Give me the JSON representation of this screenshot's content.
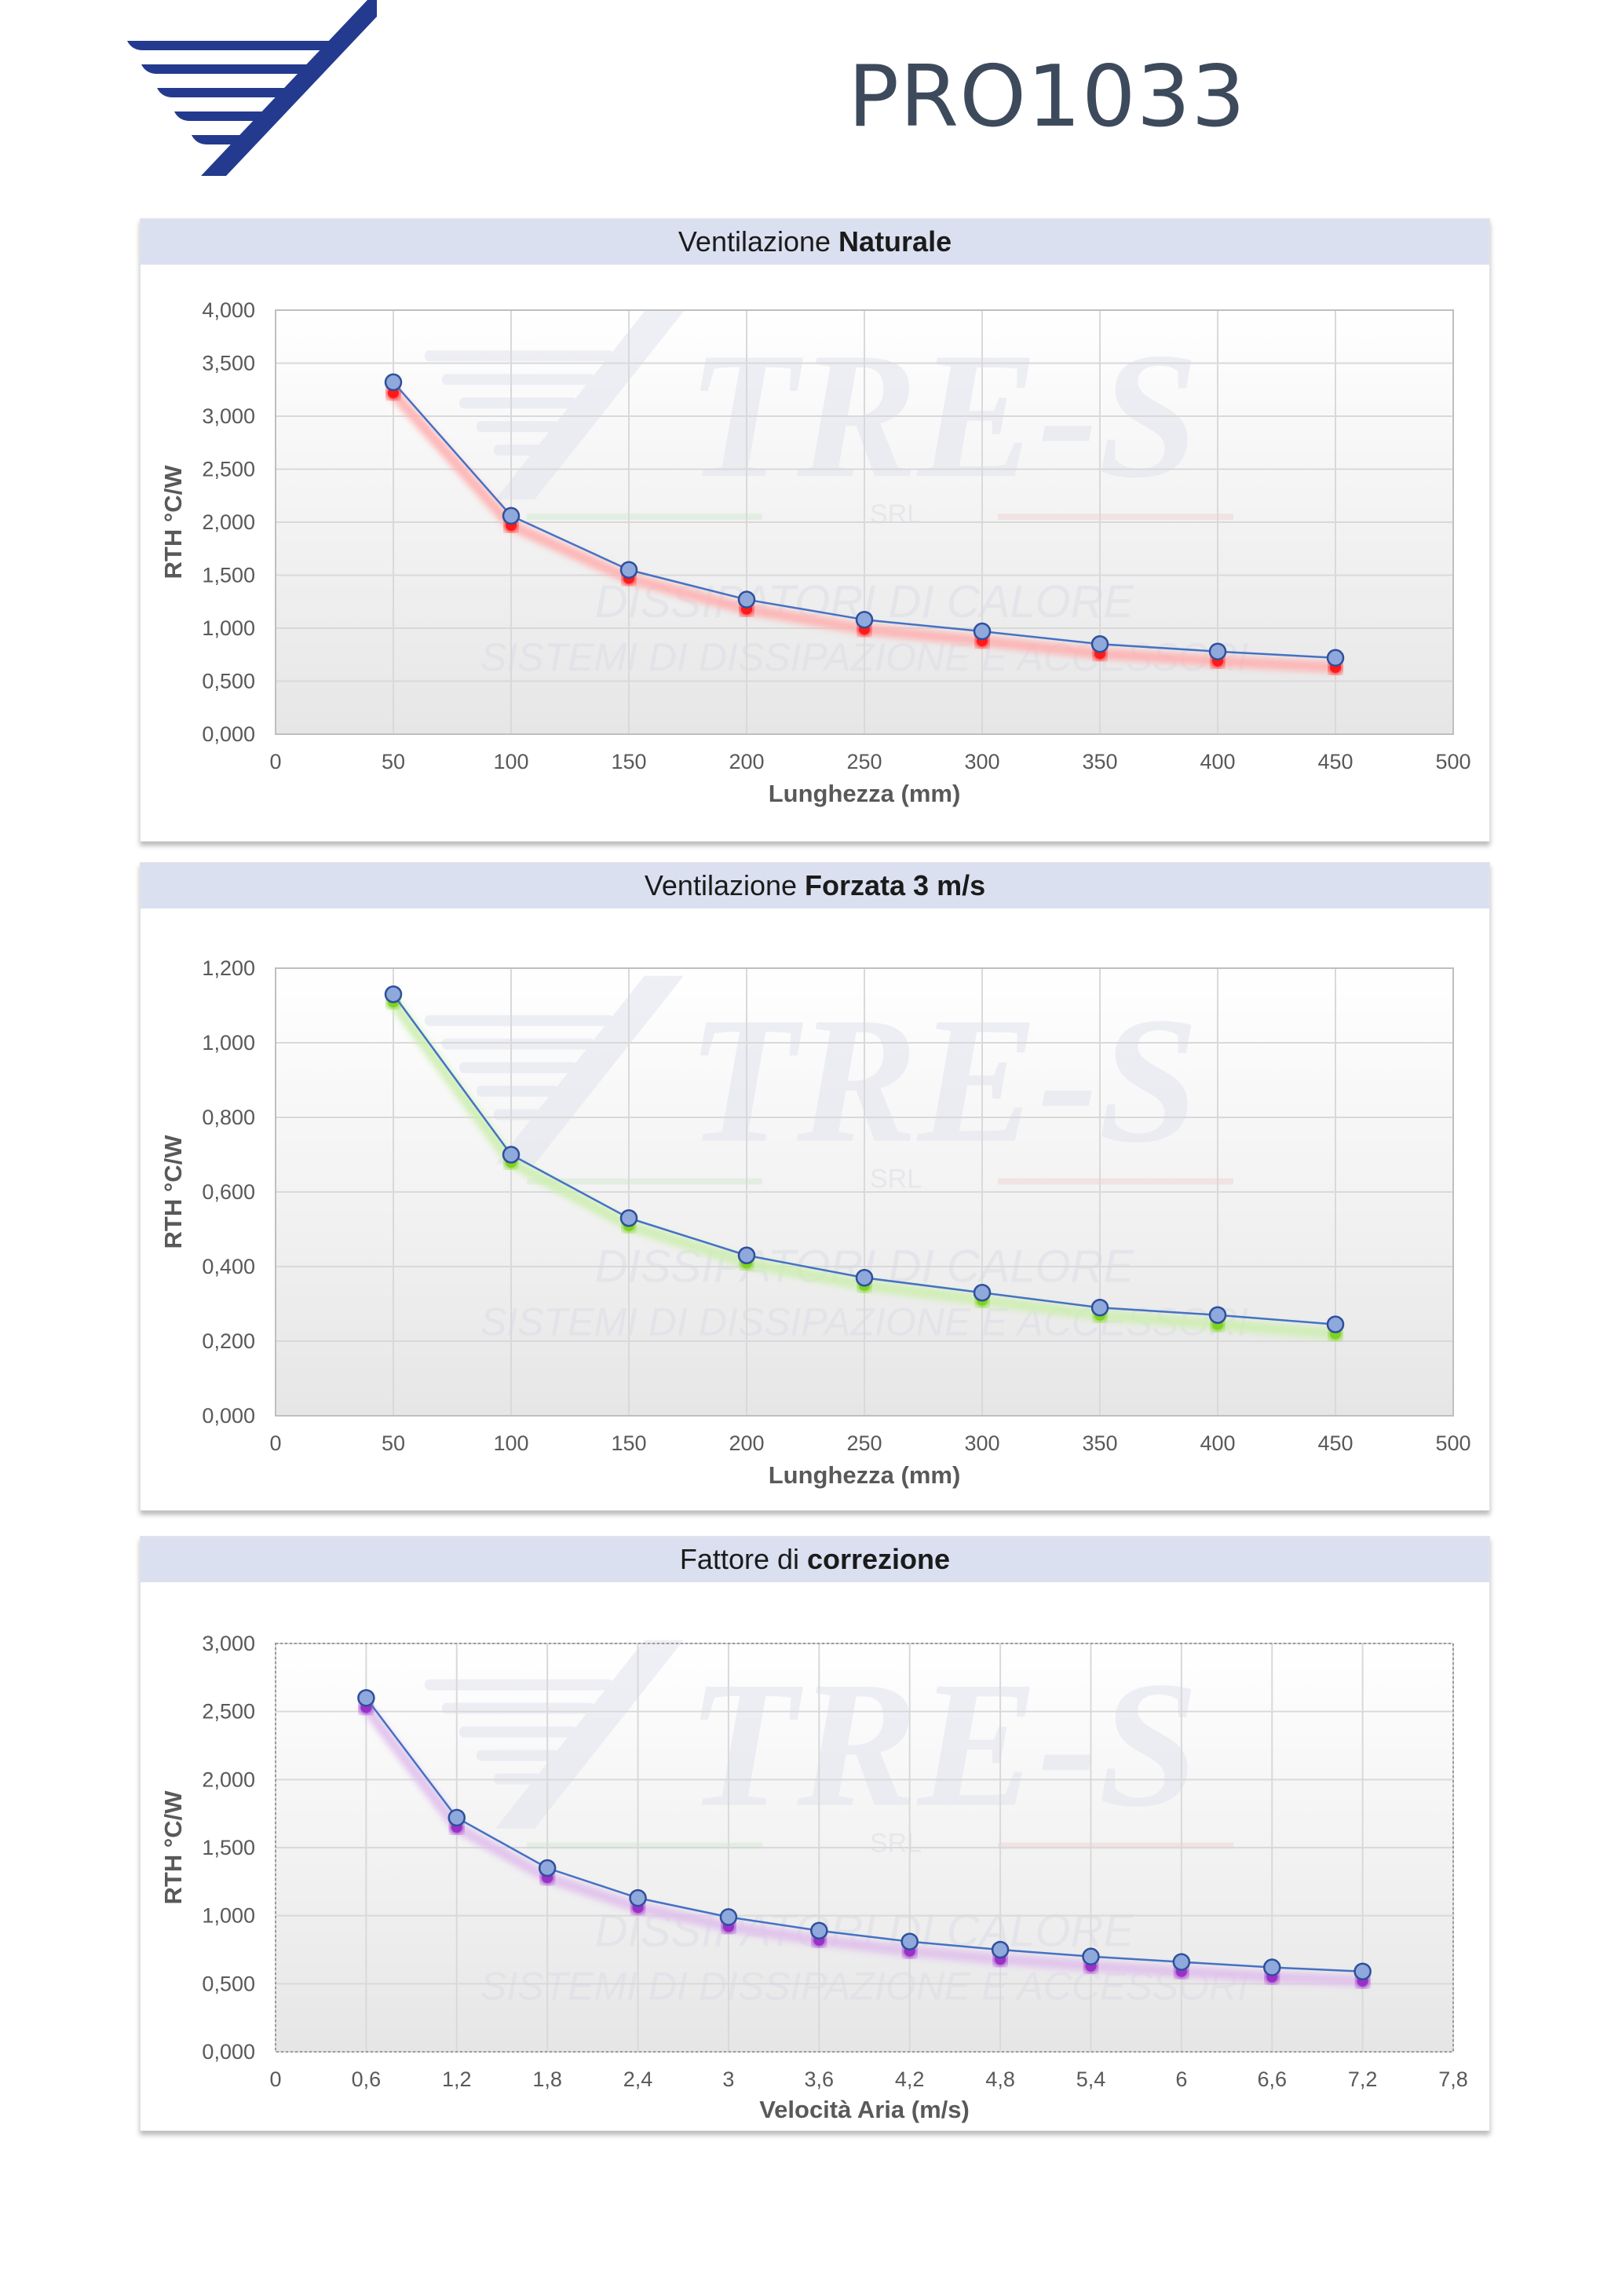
{
  "header": {
    "product_code": "PRO1033",
    "logo_icon": "tre-s-wing-logo-icon",
    "brand_color": "#233a8e"
  },
  "watermark": {
    "brand": "TRE-S",
    "sub": "SRL",
    "line1": "DISSIPATORI DI CALORE",
    "line2": "SISTEMI DI DISSIPAZIONE E ACCESSORI"
  },
  "chart_data": [
    {
      "type": "line",
      "title_prefix": "Ventilazione ",
      "title_bold": "Naturale",
      "xlabel": "Lunghezza (mm)",
      "ylabel": "RTH °C/W",
      "x": [
        50,
        100,
        150,
        200,
        250,
        300,
        350,
        400,
        450
      ],
      "x_ticks": [
        "0",
        "50",
        "100",
        "150",
        "200",
        "250",
        "300",
        "350",
        "400",
        "450",
        "500"
      ],
      "xlim": [
        0,
        500
      ],
      "y_ticks": [
        "0,000",
        "0,500",
        "1,000",
        "1,500",
        "2,000",
        "2,500",
        "3,000",
        "3,500",
        "4,000"
      ],
      "ylim": [
        0,
        4
      ],
      "grid": true,
      "series": [
        {
          "values": [
            3.32,
            2.06,
            1.55,
            1.27,
            1.08,
            0.97,
            0.85,
            0.78,
            0.72
          ],
          "color": "#4472c4",
          "marker": "#8fa9dc"
        },
        {
          "values": [
            3.22,
            1.97,
            1.47,
            1.18,
            0.99,
            0.88,
            0.76,
            0.69,
            0.63
          ],
          "color": "#ffb0b0",
          "marker": "#ff1a1a"
        }
      ]
    },
    {
      "type": "line",
      "title_prefix": "Ventilazione ",
      "title_bold": "Forzata 3 m/s",
      "xlabel": "Lunghezza (mm)",
      "ylabel": "RTH °C/W",
      "x": [
        50,
        100,
        150,
        200,
        250,
        300,
        350,
        400,
        450
      ],
      "x_ticks": [
        "0",
        "50",
        "100",
        "150",
        "200",
        "250",
        "300",
        "350",
        "400",
        "450",
        "500"
      ],
      "xlim": [
        0,
        500
      ],
      "y_ticks": [
        "0,000",
        "0,200",
        "0,400",
        "0,600",
        "0,800",
        "1,000",
        "1,200"
      ],
      "ylim": [
        0,
        1.2
      ],
      "grid": true,
      "series": [
        {
          "values": [
            1.13,
            0.7,
            0.53,
            0.43,
            0.37,
            0.33,
            0.29,
            0.27,
            0.245
          ],
          "color": "#4472c4",
          "marker": "#8fa9dc"
        },
        {
          "values": [
            1.11,
            0.68,
            0.51,
            0.41,
            0.35,
            0.31,
            0.27,
            0.245,
            0.22
          ],
          "color": "#cdeeb0",
          "marker": "#7ed321"
        }
      ]
    },
    {
      "type": "line",
      "title_prefix": "Fattore di ",
      "title_bold": "correzione",
      "xlabel": "Velocità Aria (m/s)",
      "ylabel": "RTH °C/W",
      "x": [
        0.6,
        1.2,
        1.8,
        2.4,
        3.0,
        3.6,
        4.2,
        4.8,
        5.4,
        6.0,
        6.6,
        7.2
      ],
      "x_ticks": [
        "0",
        "0,6",
        "1,2",
        "1,8",
        "2,4",
        "3",
        "3,6",
        "4,2",
        "4,8",
        "5,4",
        "6",
        "6,6",
        "7,2",
        "7,8"
      ],
      "xlim": [
        0,
        7.8
      ],
      "y_ticks": [
        "0,000",
        "0,500",
        "1,000",
        "1,500",
        "2,000",
        "2,500",
        "3,000"
      ],
      "ylim": [
        0,
        3
      ],
      "grid": true,
      "series": [
        {
          "values": [
            2.6,
            1.72,
            1.35,
            1.13,
            0.99,
            0.89,
            0.81,
            0.75,
            0.7,
            0.66,
            0.62,
            0.59
          ],
          "color": "#4472c4",
          "marker": "#8fa9dc"
        },
        {
          "values": [
            2.53,
            1.65,
            1.28,
            1.06,
            0.92,
            0.82,
            0.74,
            0.68,
            0.63,
            0.59,
            0.55,
            0.52
          ],
          "color": "#e0c0ec",
          "marker": "#9b30c8"
        }
      ]
    }
  ]
}
